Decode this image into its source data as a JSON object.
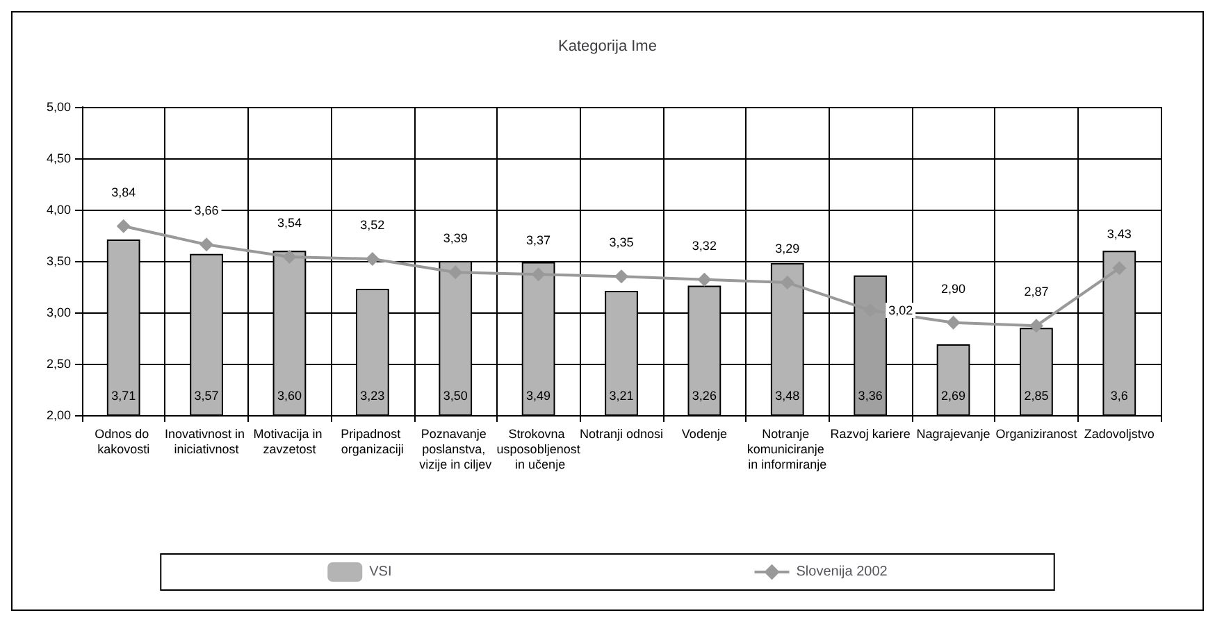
{
  "chart_data": {
    "type": "bar",
    "title": "Kategorija Ime",
    "categories": [
      "Odnos do kakovosti",
      "Inovativnost in iniciativnost",
      "Motivacija in zavzetost",
      "Pripadnost organizaciji",
      "Poznavanje poslanstva, vizije in ciljev",
      "Strokovna usposobljenost in učenje",
      "Notranji odnosi",
      "Vodenje",
      "Notranje komuniciranje in informiranje",
      "Razvoj kariere",
      "Nagrajevanje",
      "Organiziranost",
      "Zadovoljstvo"
    ],
    "series": [
      {
        "name": "VSI",
        "color": "#b4b4b4",
        "colors": [
          "#b4b4b4",
          "#b4b4b4",
          "#b4b4b4",
          "#b4b4b4",
          "#b4b4b4",
          "#b4b4b4",
          "#b4b4b4",
          "#b4b4b4",
          "#b4b4b4",
          "#a0a0a0",
          "#b4b4b4",
          "#b4b4b4",
          "#b4b4b4"
        ],
        "values": [
          3.71,
          3.57,
          3.6,
          3.23,
          3.5,
          3.49,
          3.21,
          3.26,
          3.48,
          3.36,
          2.69,
          2.85,
          3.6
        ],
        "value_labels": [
          "3,71",
          "3,57",
          "3,60",
          "3,23",
          "3,50",
          "3,49",
          "3,21",
          "3,26",
          "3,48",
          "3,36",
          "2,69",
          "2,85",
          "3,6"
        ]
      },
      {
        "name": "Slovenija 2002",
        "type": "line",
        "color": "#999999",
        "values": [
          3.84,
          3.66,
          3.54,
          3.52,
          3.39,
          3.37,
          3.35,
          3.32,
          3.29,
          3.02,
          2.9,
          2.87,
          3.43
        ],
        "value_labels": [
          "3,84",
          "3,66",
          "3,54",
          "3,52",
          "3,39",
          "3,37",
          "3,35",
          "3,32",
          "3,29",
          "3,02",
          "2,90",
          "2,87",
          "3,43"
        ]
      }
    ],
    "ylim": [
      2,
      5
    ],
    "yticks": [
      {
        "value": 2,
        "label": "2,00"
      },
      {
        "value": 2.5,
        "label": "2,50"
      },
      {
        "value": 3,
        "label": "3,00"
      },
      {
        "value": 3.5,
        "label": "3,50"
      },
      {
        "value": 4,
        "label": "4,00"
      },
      {
        "value": 4.5,
        "label": "4,50"
      },
      {
        "value": 5,
        "label": "5,00"
      }
    ],
    "grid": true,
    "legend": "bottom",
    "marker": "diamond",
    "line_style": "solid"
  }
}
